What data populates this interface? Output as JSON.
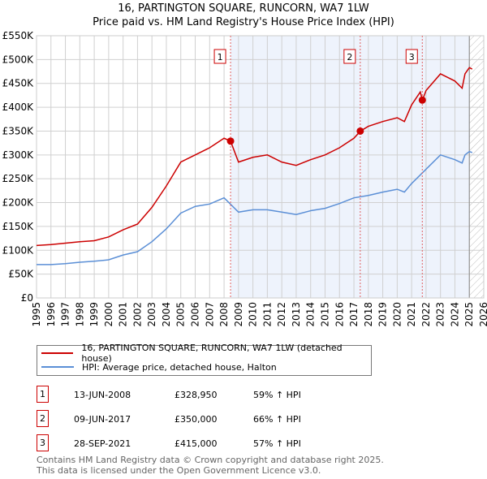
{
  "chart_data": {
    "type": "line",
    "title": "16, PARTINGTON SQUARE, RUNCORN, WA7 1LW",
    "subtitle": "Price paid vs. HM Land Registry's House Price Index (HPI)",
    "xlim": [
      1995,
      2026
    ],
    "ylim": [
      0,
      550000
    ],
    "x_ticks": [
      "1995",
      "1996",
      "1997",
      "1998",
      "1999",
      "2000",
      "2001",
      "2002",
      "2003",
      "2004",
      "2005",
      "2006",
      "2007",
      "2008",
      "2009",
      "2010",
      "2011",
      "2012",
      "2013",
      "2014",
      "2015",
      "2016",
      "2017",
      "2018",
      "2019",
      "2020",
      "2021",
      "2022",
      "2023",
      "2024",
      "2025",
      "2026"
    ],
    "y_ticks": [
      "£0",
      "£50K",
      "£100K",
      "£150K",
      "£200K",
      "£250K",
      "£300K",
      "£350K",
      "£400K",
      "£450K",
      "£500K",
      "£550K"
    ],
    "grid": true,
    "series": [
      {
        "name": "16, PARTINGTON SQUARE, RUNCORN, WA7 1LW (detached house)",
        "color": "#cc0000",
        "x": [
          1995,
          1996,
          1997,
          1998,
          1999,
          2000,
          2001,
          2002,
          2003,
          2004,
          2005,
          2006,
          2007,
          2008,
          2008.45,
          2009,
          2010,
          2011,
          2012,
          2013,
          2014,
          2015,
          2016,
          2017,
          2017.45,
          2018,
          2019,
          2020,
          2020.5,
          2021,
          2021.6,
          2021.75,
          2022,
          2023,
          2024,
          2024.5,
          2024.7,
          2025,
          2025.2
        ],
        "y": [
          110000,
          112000,
          115000,
          118000,
          120000,
          128000,
          143000,
          155000,
          190000,
          235000,
          285000,
          300000,
          315000,
          335000,
          328950,
          285000,
          295000,
          300000,
          285000,
          278000,
          290000,
          300000,
          315000,
          335000,
          350000,
          360000,
          370000,
          378000,
          370000,
          405000,
          432000,
          415000,
          435000,
          470000,
          455000,
          440000,
          470000,
          483000,
          480000
        ]
      },
      {
        "name": "HPI: Average price, detached house, Halton",
        "color": "#5b8fd6",
        "x": [
          1995,
          1996,
          1997,
          1998,
          1999,
          2000,
          2001,
          2002,
          2003,
          2004,
          2005,
          2006,
          2007,
          2008,
          2009,
          2010,
          2011,
          2012,
          2013,
          2014,
          2015,
          2016,
          2017,
          2018,
          2019,
          2020,
          2020.5,
          2021,
          2022,
          2023,
          2024,
          2024.5,
          2024.7,
          2025,
          2025.2
        ],
        "y": [
          70000,
          70000,
          72000,
          75000,
          77000,
          80000,
          90000,
          97000,
          118000,
          145000,
          178000,
          192000,
          197000,
          210000,
          180000,
          185000,
          185000,
          180000,
          175000,
          183000,
          188000,
          198000,
          210000,
          215000,
          222000,
          228000,
          222000,
          240000,
          270000,
          300000,
          290000,
          283000,
          300000,
          307000,
          305000
        ]
      }
    ],
    "sales": [
      {
        "label": "1",
        "x": 2008.45,
        "y": 328950,
        "date": "13-JUN-2008",
        "price": "£328,950",
        "hpi": "59% ↑ HPI"
      },
      {
        "label": "2",
        "x": 2017.44,
        "y": 350000,
        "date": "09-JUN-2017",
        "price": "£350,000",
        "hpi": "66% ↑ HPI"
      },
      {
        "label": "3",
        "x": 2021.74,
        "y": 415000,
        "date": "28-SEP-2021",
        "price": "£415,000",
        "hpi": "57% ↑ HPI"
      }
    ],
    "shaded_from": 2008.45,
    "hatched_from": 2025.0,
    "legend_placement": "below"
  },
  "footer": [
    "Contains HM Land Registry data © Crown copyright and database right 2025.",
    "This data is licensed under the Open Government Licence v3.0."
  ]
}
